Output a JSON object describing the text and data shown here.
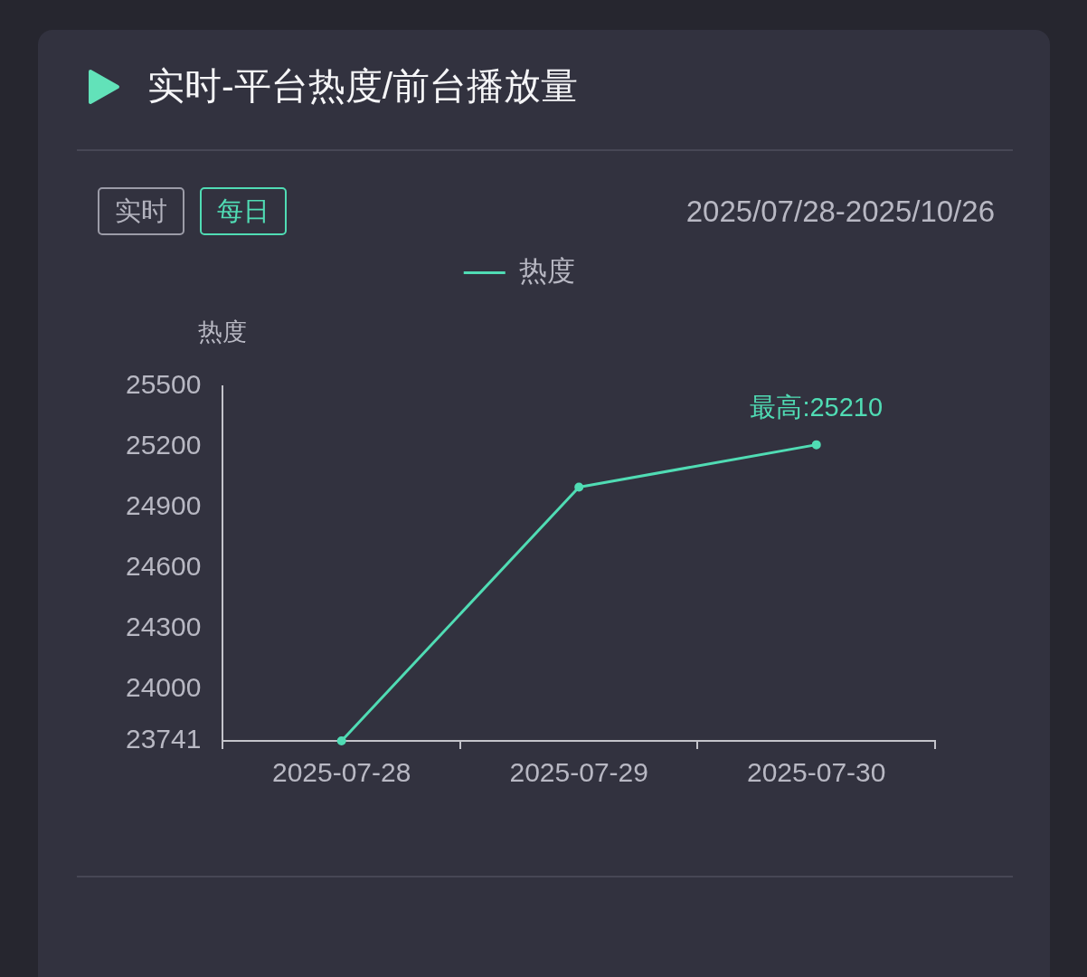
{
  "chart_data": {
    "type": "line",
    "title": "实时-平台热度/前台播放量",
    "subtitle": "2025/07/28-2025/10/26",
    "categories": [
      "2025-07-28",
      "2025-07-29",
      "2025-07-30"
    ],
    "series": [
      {
        "name": "热度",
        "color": "#50dcb4",
        "values": [
          23741,
          25000,
          25210
        ]
      }
    ],
    "ylabel": "热度",
    "ylim": [
      23741,
      25500
    ],
    "yticks": [
      23741,
      24000,
      24300,
      24600,
      24900,
      25200,
      25500
    ],
    "grid": false,
    "legend": "top",
    "marker": "circle",
    "line_style": "solid",
    "annotations": [
      "实时",
      "每日",
      {
        "text": "最高:25210",
        "x": "2025-07-30",
        "y": 25210
      }
    ]
  }
}
